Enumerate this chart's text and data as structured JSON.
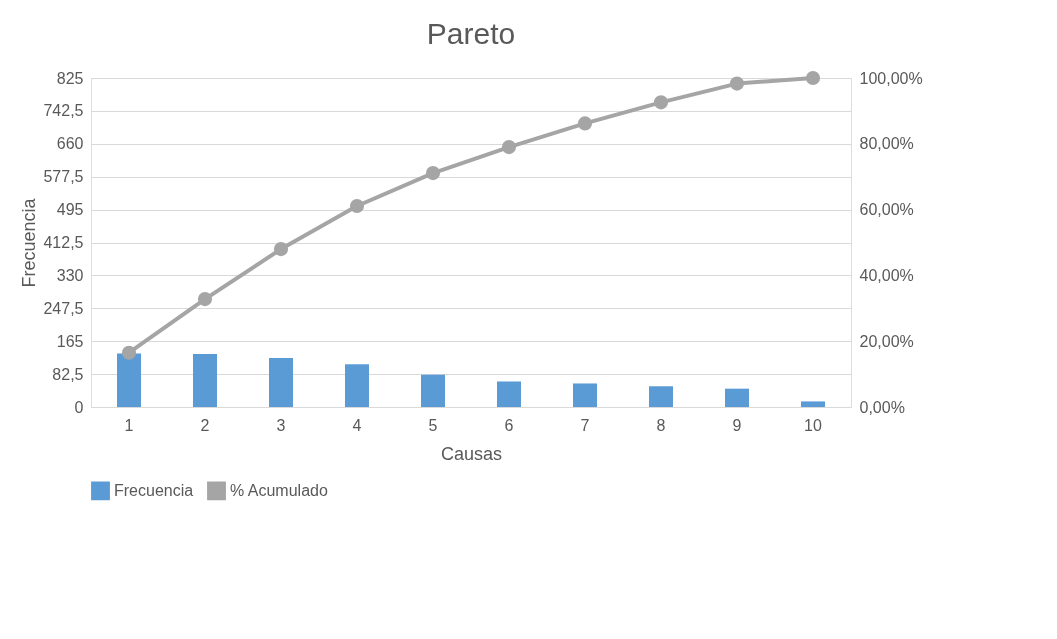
{
  "chart_data": {
    "type": "bar",
    "title": "Pareto",
    "xlabel": "Causas",
    "ylabel": "Frecuencia",
    "categories": [
      "1",
      "2",
      "3",
      "4",
      "5",
      "6",
      "7",
      "8",
      "9",
      "10"
    ],
    "series": [
      {
        "name": "Frecuencia",
        "color": "#5b9bd5",
        "values": [
          134,
          133,
          123,
          107,
          81,
          64,
          59,
          52,
          46,
          14
        ]
      },
      {
        "name": "% Acumulado",
        "type": "line",
        "axis": "y2",
        "color": "#a5a5a5",
        "marker": "circle",
        "values": [
          16.5,
          32.8,
          48.0,
          61.1,
          71.1,
          79.0,
          86.2,
          92.6,
          98.3,
          100
        ]
      }
    ],
    "ylim": [
      0,
      825
    ],
    "yticks": [
      0,
      {
        "value": 82.5,
        "label": "82,5"
      },
      165,
      {
        "value": 247.5,
        "label": "247,5"
      },
      330,
      {
        "value": 412.5,
        "label": "412,5"
      },
      495,
      {
        "value": 577.5,
        "label": "577,5"
      },
      660,
      {
        "value": 742.5,
        "label": "742,5"
      },
      825
    ],
    "y2lim": [
      0,
      100
    ],
    "y2ticks": [
      {
        "value": 0,
        "label": "0,00%"
      },
      {
        "value": 20,
        "label": "20,00%"
      },
      {
        "value": 40,
        "label": "40,00%"
      },
      {
        "value": 60,
        "label": "60,00%"
      },
      {
        "value": 80,
        "label": "80,00%"
      },
      {
        "value": 100,
        "label": "100,00%"
      }
    ],
    "grid": "y",
    "legend": "bottom"
  }
}
